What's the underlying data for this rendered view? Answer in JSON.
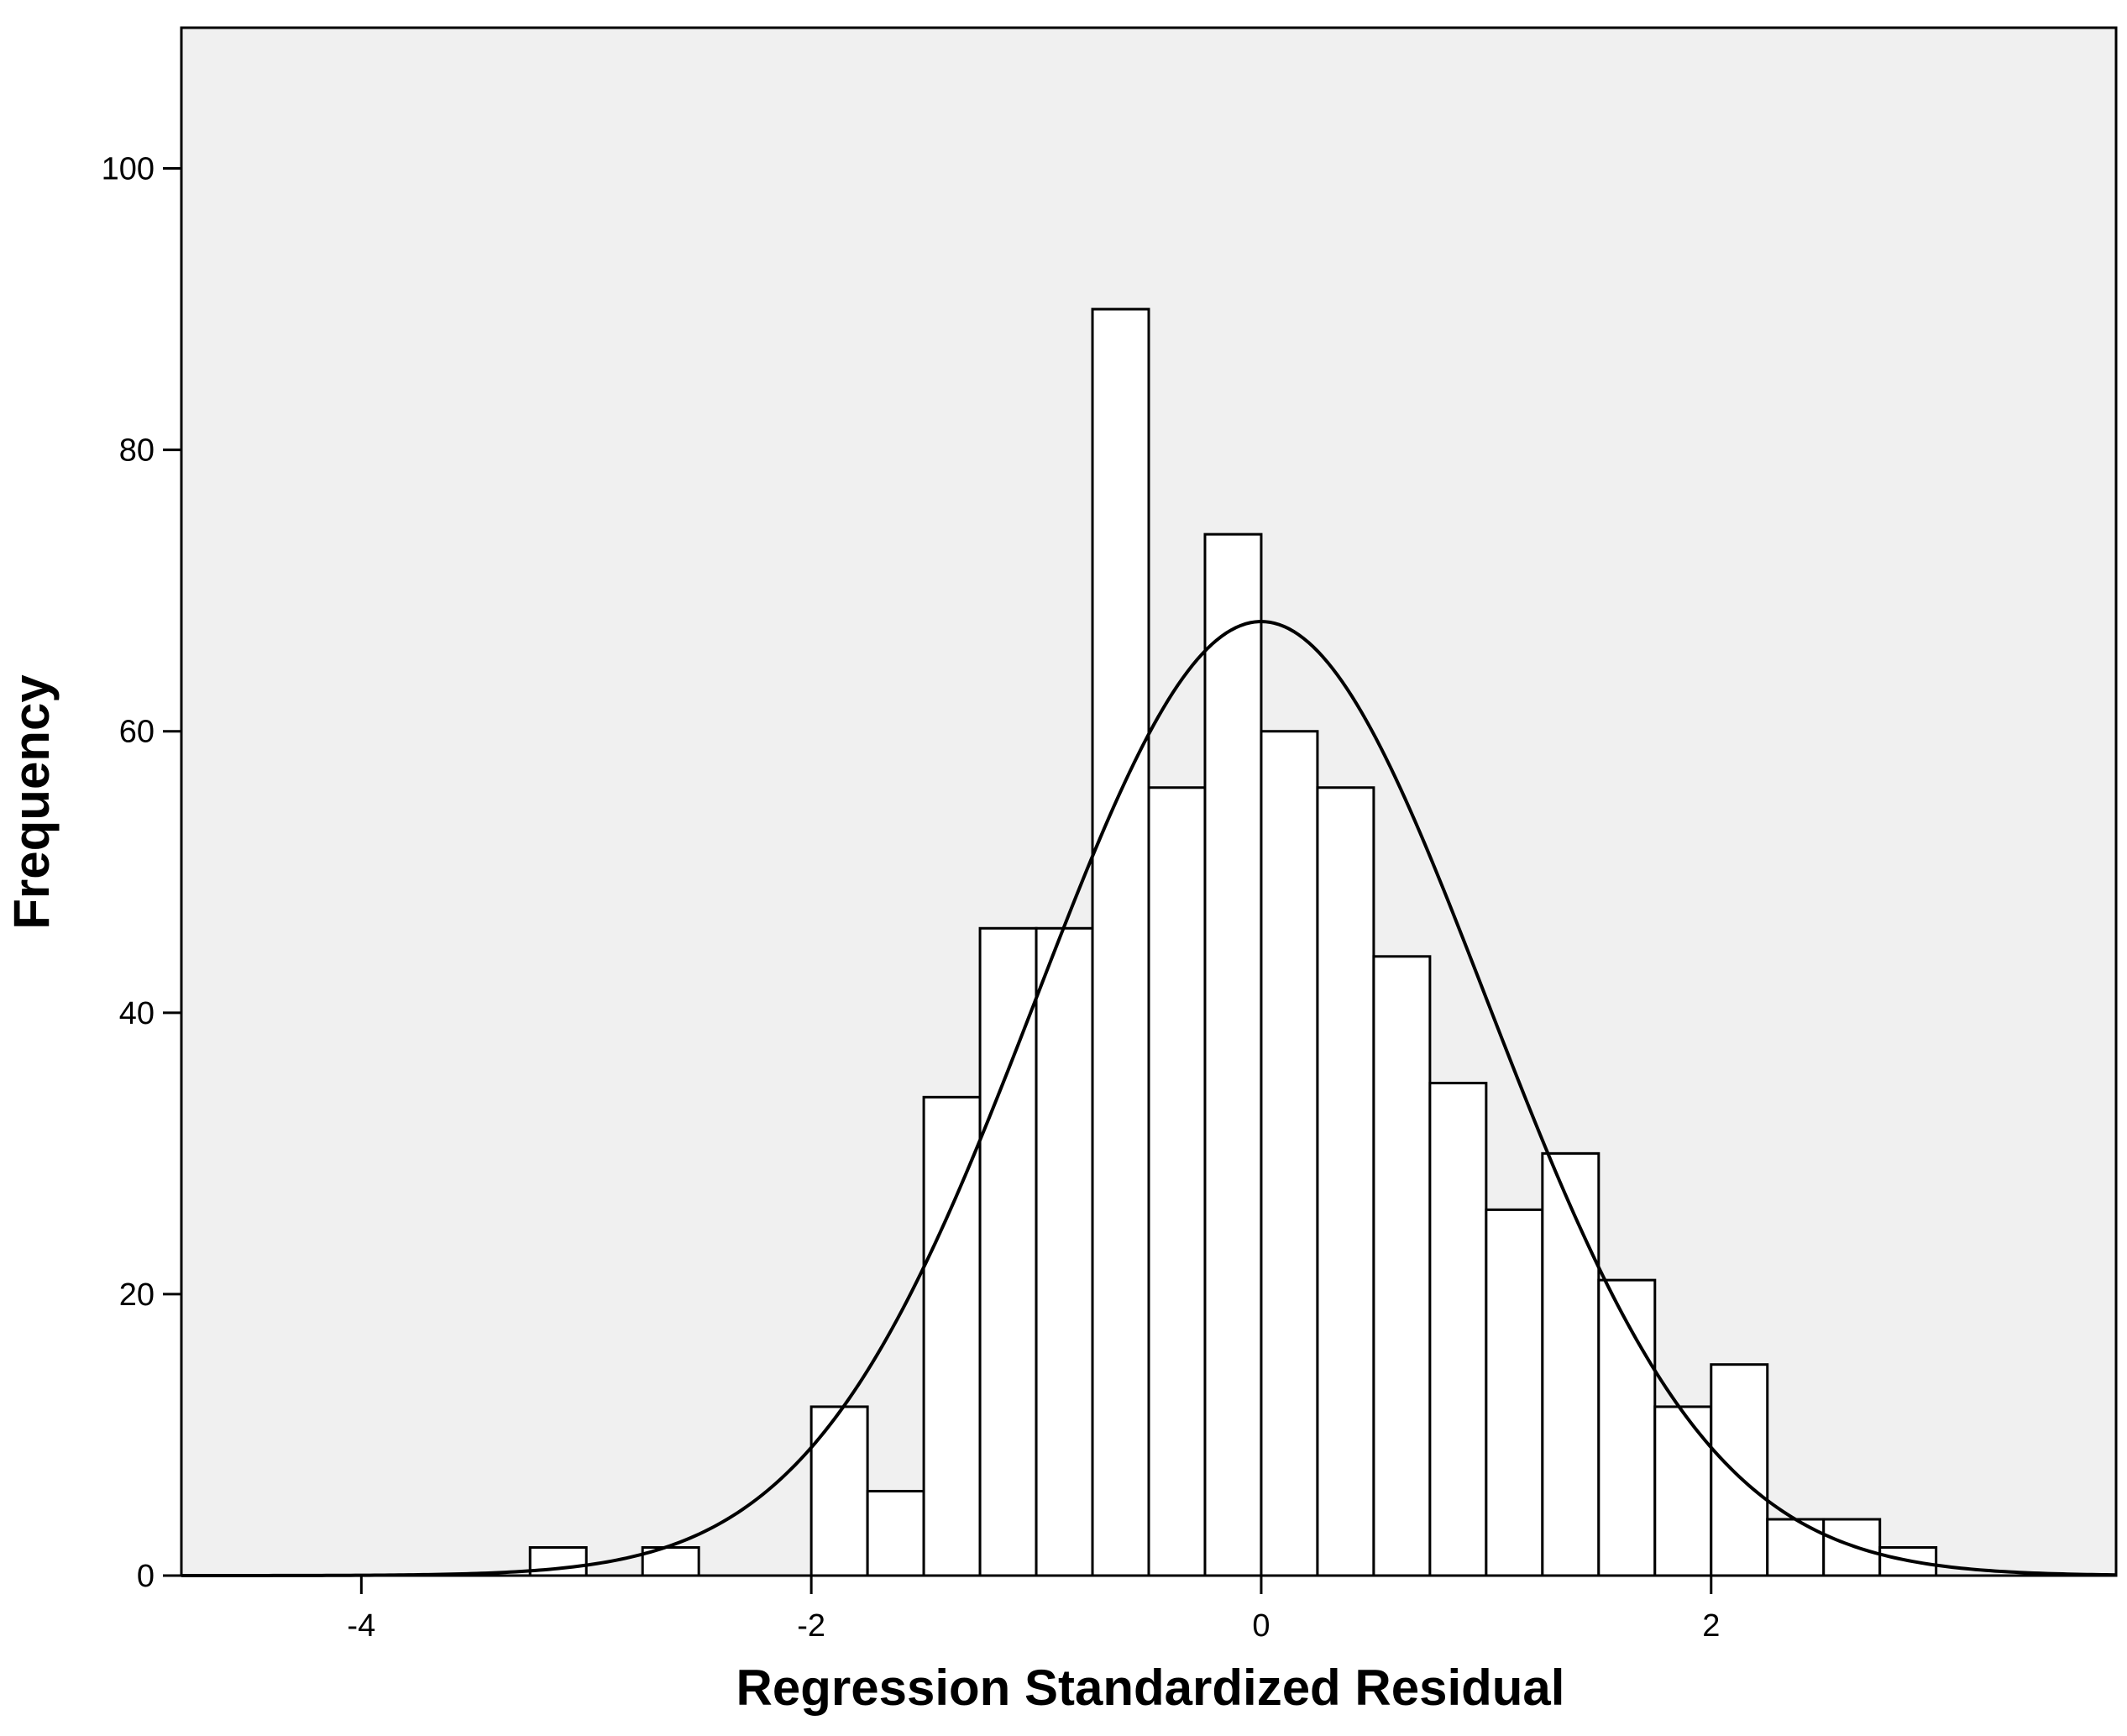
{
  "chart_data": {
    "type": "bar",
    "subtype": "histogram",
    "xlabel": "Regression Standardized Residual",
    "ylabel": "Frequency",
    "xlim": [
      -4.8,
      3.8
    ],
    "ylim": [
      0,
      110
    ],
    "xticks": [
      -4,
      -2,
      0,
      2
    ],
    "yticks": [
      0,
      20,
      40,
      60,
      80,
      100
    ],
    "bin_width": 0.25,
    "bins": [
      {
        "start": -3.25,
        "count": 2
      },
      {
        "start": -2.75,
        "count": 2
      },
      {
        "start": -2.0,
        "count": 12
      },
      {
        "start": -1.75,
        "count": 6
      },
      {
        "start": -1.5,
        "count": 34
      },
      {
        "start": -1.25,
        "count": 46
      },
      {
        "start": -1.0,
        "count": 46
      },
      {
        "start": -0.75,
        "count": 90
      },
      {
        "start": -0.5,
        "count": 56
      },
      {
        "start": -0.25,
        "count": 74
      },
      {
        "start": 0.0,
        "count": 60
      },
      {
        "start": 0.25,
        "count": 56
      },
      {
        "start": 0.5,
        "count": 44
      },
      {
        "start": 0.75,
        "count": 35
      },
      {
        "start": 1.0,
        "count": 26
      },
      {
        "start": 1.25,
        "count": 30
      },
      {
        "start": 1.5,
        "count": 21
      },
      {
        "start": 1.75,
        "count": 12
      },
      {
        "start": 2.0,
        "count": 15
      },
      {
        "start": 2.25,
        "count": 4
      },
      {
        "start": 2.5,
        "count": 4
      },
      {
        "start": 2.75,
        "count": 2
      }
    ],
    "normal_curve": {
      "mean": 0.0,
      "std_dev": 0.998,
      "peak": 67.8
    },
    "colors": {
      "plot_background": "#f0f0f0",
      "bar_fill": "#ffffff",
      "stroke": "#000000"
    },
    "grid": false,
    "legend": "none"
  }
}
